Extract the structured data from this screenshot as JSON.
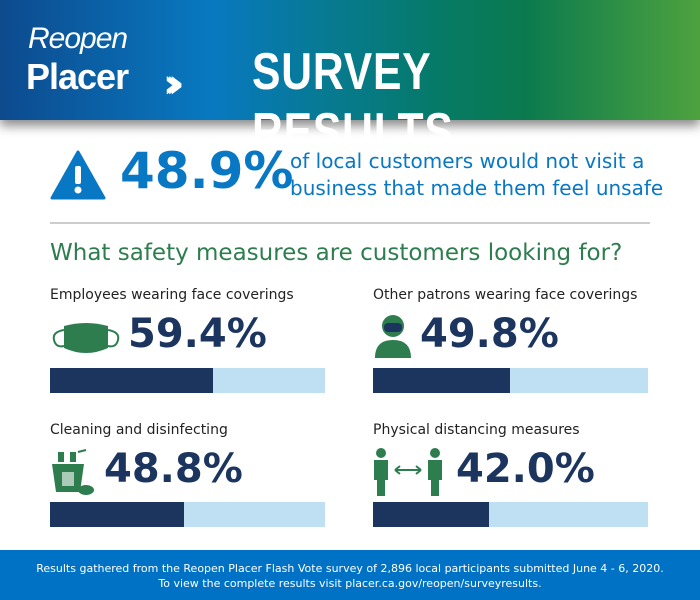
{
  "header": {
    "logo_line1": "Reopen",
    "logo_line2": "Placer",
    "logo_chevrons": "›››",
    "title": "SURVEY RESULTS"
  },
  "highlight": {
    "value": "48.9%",
    "text_line1": "of local customers would not visit a",
    "text_line2": "business that made them feel unsafe",
    "icon": "warning-icon"
  },
  "question": "What safety measures are customers looking for?",
  "colors": {
    "bar_fill": "#1b355e",
    "bar_track": "#bfdff3",
    "icon_green": "#2e7d4f",
    "accent_blue": "#0878c4"
  },
  "chart_data": {
    "type": "bar",
    "orientation": "horizontal",
    "xlim": [
      0,
      100
    ],
    "categories": [
      "Employees wearing face coverings",
      "Other patrons wearing face coverings",
      "Cleaning and disinfecting",
      "Physical distancing measures"
    ],
    "values": [
      59.4,
      49.8,
      48.8,
      42.0
    ],
    "labels": [
      "59.4%",
      "49.8%",
      "48.8%",
      "42.0%"
    ],
    "icons": [
      "face-mask-icon",
      "masked-person-icon",
      "cleaning-supplies-icon",
      "distancing-icon"
    ]
  },
  "footer": {
    "line1": "Results gathered from the Reopen Placer Flash Vote survey of 2,896 local participants submitted June 4 - 6, 2020.",
    "line2": "To view the complete results visit placer.ca.gov/reopen/surveyresults."
  }
}
